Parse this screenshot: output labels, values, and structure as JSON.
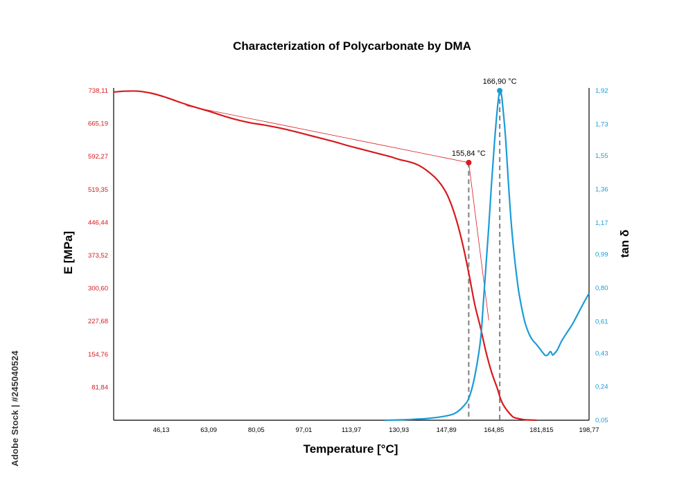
{
  "chart_data": {
    "type": "line",
    "title": "Characterization of Polycarbonate by DMA",
    "xlabel": "Temperature [°C]",
    "ylabel_left": "E [MPa]",
    "ylabel_right": "tan δ",
    "x_ticks": [
      "46,13",
      "63,09",
      "80,05",
      "97,01",
      "113,97",
      "130,93",
      "147,89",
      "164,85",
      "181,815",
      "198,77"
    ],
    "y_left_ticks": [
      "738,11",
      "665,19",
      "592,27",
      "519,35",
      "446,44",
      "373,52",
      "300,60",
      "227,68",
      "154,76",
      "81,84"
    ],
    "y_right_ticks": [
      "1,92",
      "1,73",
      "1,55",
      "1,36",
      "1,17",
      "0,99",
      "0,80",
      "0,61",
      "0,43",
      "0,24",
      "0,05"
    ],
    "xlim": [
      29.17,
      198.77
    ],
    "ylim_left": [
      8.92,
      738.11
    ],
    "ylim_right": [
      0.05,
      1.92
    ],
    "grid": false,
    "colors": {
      "storage_modulus": "#d7191c",
      "tan_delta": "#1a9bd7",
      "marker_line": "#888888"
    },
    "series": [
      {
        "axis": "left",
        "x": [
          29.17,
          33,
          38,
          43,
          48,
          53,
          58,
          63,
          68,
          73,
          78,
          83,
          88,
          93,
          98,
          103,
          108,
          113,
          118,
          123,
          128,
          131,
          135,
          138,
          141,
          144,
          146,
          148,
          150,
          152,
          154,
          156,
          158,
          160,
          162,
          164,
          166,
          167,
          168,
          169,
          170,
          171,
          172,
          174,
          176,
          180
        ],
        "values": [
          735,
          737,
          737,
          732,
          723,
          712,
          702,
          693,
          683,
          674,
          667,
          662,
          656,
          649,
          641,
          633,
          625,
          616,
          608,
          600,
          592,
          586,
          580,
          573,
          561,
          545,
          530,
          510,
          480,
          440,
          390,
          330,
          265,
          215,
          160,
          115,
          80,
          60,
          45,
          35,
          27,
          20,
          15,
          12,
          10,
          9
        ]
      },
      {
        "axis": "right",
        "x": [
          126,
          131,
          136,
          141,
          145,
          148,
          151,
          154,
          156,
          158,
          160,
          161,
          162,
          163,
          164,
          165,
          166,
          166.9,
          167.5,
          168,
          169,
          170,
          171,
          172,
          173,
          174,
          176,
          178,
          180,
          181.5,
          183,
          184,
          185,
          185.8,
          186.5,
          187.5,
          189,
          191,
          193,
          195,
          197,
          198.77
        ],
        "values": [
          0.05,
          0.052,
          0.055,
          0.06,
          0.067,
          0.075,
          0.09,
          0.13,
          0.18,
          0.3,
          0.5,
          0.7,
          0.93,
          1.15,
          1.4,
          1.62,
          1.81,
          1.92,
          1.9,
          1.83,
          1.65,
          1.4,
          1.17,
          1.0,
          0.86,
          0.75,
          0.6,
          0.52,
          0.48,
          0.45,
          0.42,
          0.42,
          0.44,
          0.42,
          0.43,
          0.45,
          0.5,
          0.55,
          0.6,
          0.66,
          0.72,
          0.77
        ]
      }
    ],
    "tangent_lines": [
      {
        "axis": "left",
        "x": [
          55,
          155.84
        ],
        "values": [
          705,
          579
        ]
      },
      {
        "axis": "left",
        "x": [
          155.84,
          163
        ],
        "values": [
          579,
          230
        ]
      }
    ],
    "markers": [
      {
        "axis": "left",
        "x": 155.84,
        "y": 579,
        "label": "155,84 °C"
      },
      {
        "axis": "right",
        "x": 166.9,
        "y": 1.92,
        "label": "166,90 °C"
      }
    ],
    "watermark_credit": "Adobe Stock | #245040524"
  }
}
